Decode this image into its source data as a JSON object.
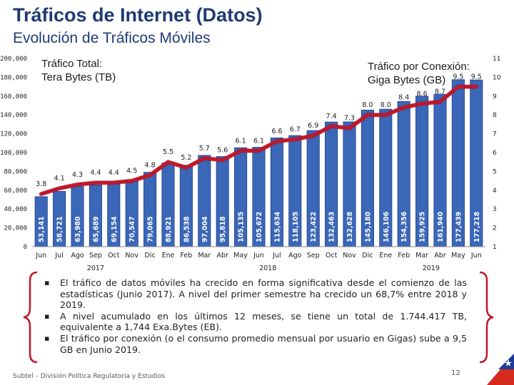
{
  "header": {
    "title": "Tráficos de Internet (Datos)",
    "subtitle": "Evolución de Tráficos Móviles"
  },
  "chart_data": {
    "type": "bar+line",
    "left_label": "Tráfico Total:",
    "left_label_sub": "Tera Bytes (TB)",
    "right_label": "Tráfico por Conexión:",
    "right_label_sub": "Giga Bytes (GB)",
    "categories": [
      "Jun",
      "Jul",
      "Ago",
      "Sep",
      "Oct",
      "Nov",
      "Dic",
      "Ene",
      "Feb",
      "Mar",
      "Abr",
      "May",
      "Jun",
      "Jul",
      "Ago",
      "Sep",
      "Oct",
      "Nov",
      "Dic",
      "Ene",
      "Feb",
      "Mar",
      "Abr",
      "May",
      "Jun"
    ],
    "years": [
      {
        "label": "2017",
        "start": 0,
        "end": 6
      },
      {
        "label": "2018",
        "start": 7,
        "end": 18
      },
      {
        "label": "2019",
        "start": 19,
        "end": 24
      }
    ],
    "series": [
      {
        "name": "Tráfico Total (TB)",
        "axis": "left",
        "values": [
          53141,
          58721,
          63980,
          65689,
          69154,
          70547,
          79065,
          88921,
          86538,
          97004,
          95818,
          105135,
          105672,
          115634,
          118105,
          123422,
          132463,
          132628,
          145180,
          146106,
          154356,
          159925,
          161940,
          177439,
          177218
        ],
        "labels": [
          "53,141",
          "58,721",
          "63,980",
          "65,689",
          "69,154",
          "70,547",
          "79,065",
          "88,921",
          "86,538",
          "97,004",
          "95,818",
          "105,135",
          "105,672",
          "115,634",
          "118,105",
          "123,422",
          "132,463",
          "132,628",
          "145,180",
          "146,106",
          "154,356",
          "159,925",
          "161,940",
          "177,439",
          "177,218"
        ]
      },
      {
        "name": "Tráfico por Conexión (GB)",
        "axis": "right",
        "values": [
          3.8,
          4.1,
          4.3,
          4.4,
          4.4,
          4.5,
          4.8,
          5.5,
          5.2,
          5.7,
          5.6,
          6.1,
          6.1,
          6.6,
          6.7,
          6.9,
          7.4,
          7.3,
          8.0,
          8.0,
          8.4,
          8.6,
          8.7,
          9.5,
          9.5
        ],
        "labels": [
          "3.8",
          "4.1",
          "4.3",
          "4.4",
          "4.4",
          "4.5",
          "4.8",
          "5.5",
          "5.2",
          "5.7",
          "5.6",
          "6.1",
          "6.1",
          "6.6",
          "6.7",
          "6.9",
          "7.4",
          "7.3",
          "8.0",
          "8.0",
          "8.4",
          "8.6",
          "8.7",
          "9.5",
          "9.5"
        ]
      }
    ],
    "y_left": {
      "min": 0,
      "max": 200000,
      "ticks": [
        "0",
        "20,000",
        "40,000",
        "60,000",
        "80,000",
        "100,000",
        "120,000",
        "140,000",
        "160,000",
        "180,000",
        "200,000"
      ]
    },
    "y_right": {
      "min": 1,
      "max": 11,
      "ticks": [
        "1",
        "2",
        "3",
        "4",
        "5",
        "6",
        "7",
        "8",
        "9",
        "10",
        "11"
      ]
    },
    "colors": {
      "bar": "#3b67b8",
      "bar_edge": "#1e3f86",
      "line": "#c0172b",
      "label_in_bar": "#ffffff"
    }
  },
  "bullets": [
    "El tráfico de datos móviles ha crecido en forma significativa desde el comienzo de las estadísticas (Junio 2017). A nivel del primer semestre ha crecido un 68,7% entre 2018 y 2019.",
    "A nivel acumulado en los últimos 12 meses, se tiene un total de 1.744.417 TB, equivalente a 1,744 Exa.Bytes (EB).",
    "El tráfico por conexión (o el consumo promedio mensual por usuario en Gigas) sube a 9,5 GB en Junio 2019."
  ],
  "footer": {
    "source": "Subtel – División Política Regulatoria y Estudios",
    "page": "12"
  },
  "colors": {
    "title": "#1f3b73",
    "brace": "#c0172b",
    "flag_blue": "#1f3b99",
    "flag_red": "#d52b1e"
  }
}
